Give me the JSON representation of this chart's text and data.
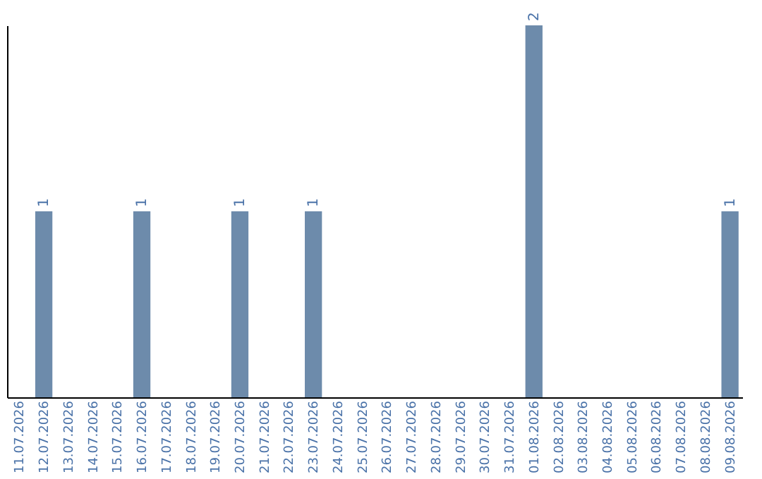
{
  "chart_data": {
    "type": "bar",
    "categories": [
      "11.07.2026",
      "12.07.2026",
      "13.07.2026",
      "14.07.2026",
      "15.07.2026",
      "16.07.2026",
      "17.07.2026",
      "18.07.2026",
      "19.07.2026",
      "20.07.2026",
      "21.07.2026",
      "22.07.2026",
      "23.07.2026",
      "24.07.2026",
      "25.07.2026",
      "26.07.2026",
      "27.07.2026",
      "28.07.2026",
      "29.07.2026",
      "30.07.2026",
      "31.07.2026",
      "01.08.2026",
      "02.08.2026",
      "03.08.2026",
      "04.08.2026",
      "05.08.2026",
      "06.08.2026",
      "07.08.2026",
      "08.08.2026",
      "09.08.2026"
    ],
    "values": [
      0,
      1,
      0,
      0,
      0,
      1,
      0,
      0,
      0,
      1,
      0,
      0,
      1,
      0,
      0,
      0,
      0,
      0,
      0,
      0,
      0,
      2,
      0,
      0,
      0,
      0,
      0,
      0,
      0,
      1
    ],
    "value_labels": [
      null,
      "1",
      null,
      null,
      null,
      "1",
      null,
      null,
      null,
      "1",
      null,
      null,
      "1",
      null,
      null,
      null,
      null,
      null,
      null,
      null,
      null,
      "2",
      null,
      null,
      null,
      null,
      null,
      null,
      null,
      "1"
    ],
    "color": "#6d8bab",
    "grid": false
  }
}
